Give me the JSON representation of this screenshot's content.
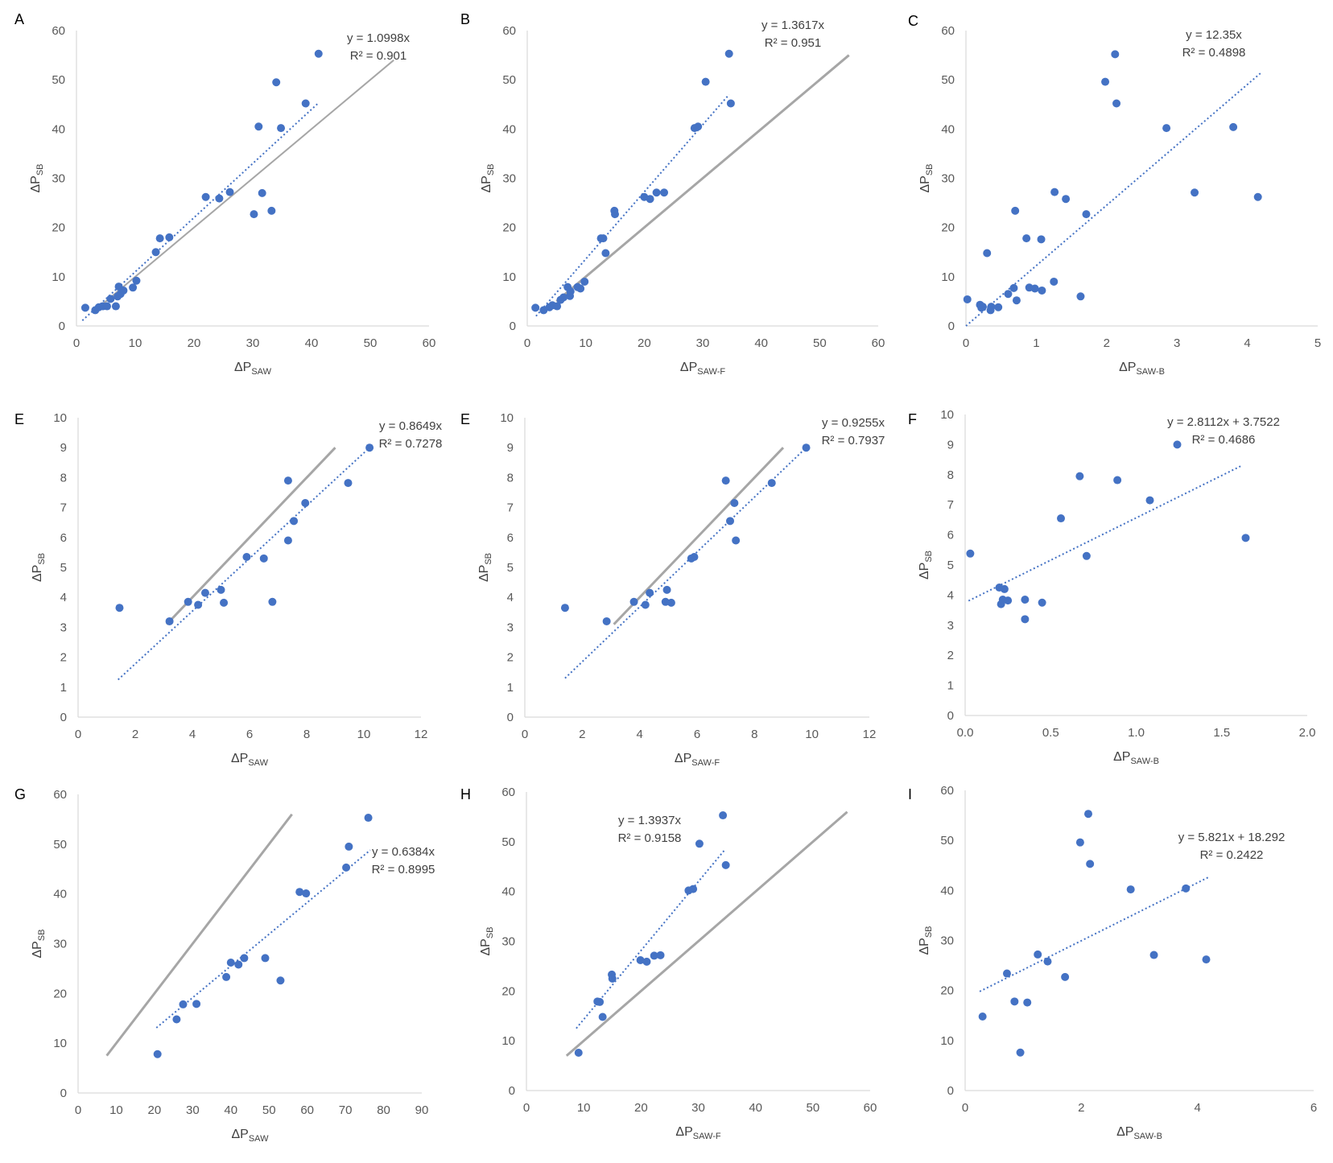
{
  "chart_data": [
    {
      "panel": "A",
      "type": "scatter",
      "xlabel": {
        "base": "ΔP",
        "sub": "SAW"
      },
      "ylabel": {
        "base": "ΔP",
        "sub": "SB"
      },
      "xlim": [
        0,
        60
      ],
      "ylim": [
        0,
        60
      ],
      "xticks": [
        0,
        10,
        20,
        30,
        40,
        50,
        60
      ],
      "yticks": [
        0,
        10,
        20,
        30,
        40,
        50,
        60
      ],
      "xtick_labels": [
        "0",
        "10",
        "20",
        "30",
        "40",
        "50",
        "60"
      ],
      "ytick_labels": [
        "0",
        "10",
        "20",
        "30",
        "40",
        "50",
        "60"
      ],
      "points": [
        [
          1.5,
          3.7
        ],
        [
          3.2,
          3.2
        ],
        [
          3.8,
          3.8
        ],
        [
          4.5,
          4
        ],
        [
          5.2,
          4
        ],
        [
          5.8,
          5.5
        ],
        [
          6.7,
          4
        ],
        [
          7,
          6
        ],
        [
          7.2,
          8
        ],
        [
          7.5,
          6.5
        ],
        [
          8,
          7.2
        ],
        [
          9.6,
          7.8
        ],
        [
          10.2,
          9.2
        ],
        [
          13.5,
          15
        ],
        [
          14.2,
          17.8
        ],
        [
          15.8,
          18
        ],
        [
          22,
          26.2
        ],
        [
          24.3,
          25.9
        ],
        [
          26.1,
          27.2
        ],
        [
          30.2,
          22.7
        ],
        [
          31,
          40.5
        ],
        [
          31.6,
          27
        ],
        [
          33.2,
          23.4
        ],
        [
          34,
          49.5
        ],
        [
          34.8,
          40.2
        ],
        [
          39,
          45.2
        ],
        [
          41.2,
          55.3
        ]
      ],
      "trendline": {
        "x": [
          1,
          41
        ],
        "y": [
          1.1,
          45.1
        ]
      },
      "identity": {
        "x": [
          4,
          54
        ],
        "y": [
          4,
          54
        ]
      },
      "equation": "y = 1.0998x",
      "r2": "R² = 0.901"
    },
    {
      "panel": "B",
      "type": "scatter",
      "xlabel": {
        "base": "ΔP",
        "sub": "SAW-F"
      },
      "ylabel": {
        "base": "ΔP",
        "sub": "SB"
      },
      "xlim": [
        0,
        60
      ],
      "ylim": [
        0,
        60
      ],
      "xticks": [
        0,
        10,
        20,
        30,
        40,
        50,
        60
      ],
      "yticks": [
        0,
        10,
        20,
        30,
        40,
        50,
        60
      ],
      "xtick_labels": [
        "0",
        "10",
        "20",
        "30",
        "40",
        "50",
        "60"
      ],
      "ytick_labels": [
        "0",
        "10",
        "20",
        "30",
        "40",
        "50",
        "60"
      ],
      "points": [
        [
          1.4,
          3.7
        ],
        [
          2.8,
          3.2
        ],
        [
          3.8,
          3.8
        ],
        [
          4.3,
          4.2
        ],
        [
          5.1,
          4
        ],
        [
          5.7,
          5.3
        ],
        [
          6.2,
          5.8
        ],
        [
          6.9,
          7.9
        ],
        [
          7.3,
          6.1
        ],
        [
          7.4,
          7
        ],
        [
          8.6,
          7.9
        ],
        [
          9.1,
          7.6
        ],
        [
          9.8,
          9
        ],
        [
          12.6,
          17.8
        ],
        [
          13,
          17.8
        ],
        [
          13.4,
          14.8
        ],
        [
          14.9,
          23.4
        ],
        [
          15,
          22.7
        ],
        [
          20,
          26.2
        ],
        [
          21,
          25.8
        ],
        [
          22.1,
          27.1
        ],
        [
          23.4,
          27.1
        ],
        [
          28.6,
          40.2
        ],
        [
          29.2,
          40.5
        ],
        [
          30.5,
          49.6
        ],
        [
          34.5,
          55.3
        ],
        [
          34.8,
          45.2
        ]
      ],
      "trendline": {
        "x": [
          1.5,
          34.5
        ],
        "y": [
          2,
          47
        ]
      },
      "identity": {
        "x": [
          5,
          55
        ],
        "y": [
          5,
          55
        ]
      },
      "equation": "y = 1.3617x",
      "r2": "R² = 0.951"
    },
    {
      "panel": "C",
      "type": "scatter",
      "xlabel": {
        "base": "ΔP",
        "sub": "SAW-B"
      },
      "ylabel": {
        "base": "ΔP",
        "sub": "SB"
      },
      "xlim": [
        0,
        5
      ],
      "ylim": [
        0,
        60
      ],
      "xticks": [
        0,
        1,
        2,
        3,
        4,
        5
      ],
      "yticks": [
        0,
        10,
        20,
        30,
        40,
        50,
        60
      ],
      "xtick_labels": [
        "0",
        "1",
        "2",
        "3",
        "4",
        "5"
      ],
      "ytick_labels": [
        "0",
        "10",
        "20",
        "30",
        "40",
        "50",
        "60"
      ],
      "points": [
        [
          0.02,
          5.4
        ],
        [
          0.2,
          4.3
        ],
        [
          0.22,
          3.7
        ],
        [
          0.24,
          3.9
        ],
        [
          0.3,
          14.8
        ],
        [
          0.35,
          3.2
        ],
        [
          0.36,
          3.9
        ],
        [
          0.46,
          3.8
        ],
        [
          0.6,
          6.5
        ],
        [
          0.68,
          7.7
        ],
        [
          0.7,
          23.4
        ],
        [
          0.72,
          5.2
        ],
        [
          0.86,
          17.8
        ],
        [
          0.9,
          7.8
        ],
        [
          0.98,
          7.6
        ],
        [
          1.07,
          17.6
        ],
        [
          1.08,
          7.2
        ],
        [
          1.25,
          9
        ],
        [
          1.26,
          27.2
        ],
        [
          1.42,
          25.8
        ],
        [
          1.63,
          6
        ],
        [
          1.71,
          22.7
        ],
        [
          1.98,
          49.6
        ],
        [
          2.12,
          55.2
        ],
        [
          2.14,
          45.2
        ],
        [
          2.85,
          40.2
        ],
        [
          3.25,
          27.1
        ],
        [
          3.8,
          40.4
        ],
        [
          4.15,
          26.2
        ]
      ],
      "trendline": {
        "x": [
          0,
          4.2
        ],
        "y": [
          0,
          51.5
        ]
      },
      "equation": "y = 12.35x",
      "r2": "R² = 0.4898"
    },
    {
      "panel": "E",
      "type": "scatter",
      "xlabel": {
        "base": "ΔP",
        "sub": "SAW"
      },
      "ylabel": {
        "base": "ΔP",
        "sub": "SB"
      },
      "xlim": [
        0,
        12
      ],
      "ylim": [
        0,
        10
      ],
      "xticks": [
        0,
        2,
        4,
        6,
        8,
        10,
        12
      ],
      "yticks": [
        0,
        1,
        2,
        3,
        4,
        5,
        6,
        7,
        8,
        9,
        10
      ],
      "xtick_labels": [
        "0",
        "2",
        "4",
        "6",
        "8",
        "10",
        "12"
      ],
      "ytick_labels": [
        "0",
        "1",
        "2",
        "3",
        "4",
        "5",
        "6",
        "7",
        "8",
        "9",
        "10"
      ],
      "points": [
        [
          1.45,
          3.65
        ],
        [
          3.2,
          3.2
        ],
        [
          3.85,
          3.85
        ],
        [
          4.2,
          3.75
        ],
        [
          4.45,
          4.15
        ],
        [
          5,
          4.25
        ],
        [
          5.1,
          3.82
        ],
        [
          5.9,
          5.35
        ],
        [
          6.5,
          5.3
        ],
        [
          6.8,
          3.85
        ],
        [
          7.35,
          5.9
        ],
        [
          7.35,
          7.9
        ],
        [
          7.55,
          6.55
        ],
        [
          7.95,
          7.15
        ],
        [
          9.45,
          7.82
        ],
        [
          10.2,
          9
        ]
      ],
      "trendline": {
        "x": [
          1.4,
          10.2
        ],
        "y": [
          1.25,
          9
        ]
      },
      "identity": {
        "x": [
          3.1,
          9
        ],
        "y": [
          3.1,
          9
        ]
      },
      "equation": "y = 0.8649x",
      "r2": "R² = 0.7278"
    },
    {
      "panel": "E",
      "type": "scatter",
      "xlabel": {
        "base": "ΔP",
        "sub": "SAW-F"
      },
      "ylabel": {
        "base": "ΔP",
        "sub": "SB"
      },
      "xlim": [
        0,
        12
      ],
      "ylim": [
        0,
        10
      ],
      "xticks": [
        0,
        2,
        4,
        6,
        8,
        10,
        12
      ],
      "yticks": [
        0,
        1,
        2,
        3,
        4,
        5,
        6,
        7,
        8,
        9,
        10
      ],
      "xtick_labels": [
        "0",
        "2",
        "4",
        "6",
        "8",
        "10",
        "12"
      ],
      "ytick_labels": [
        "0",
        "1",
        "2",
        "3",
        "4",
        "5",
        "6",
        "7",
        "8",
        "9",
        "10"
      ],
      "points": [
        [
          1.4,
          3.65
        ],
        [
          2.85,
          3.2
        ],
        [
          3.8,
          3.85
        ],
        [
          4.2,
          3.75
        ],
        [
          4.35,
          4.15
        ],
        [
          4.9,
          3.85
        ],
        [
          4.95,
          4.25
        ],
        [
          5.1,
          3.82
        ],
        [
          5.8,
          5.3
        ],
        [
          5.9,
          5.35
        ],
        [
          7,
          7.9
        ],
        [
          7.15,
          6.55
        ],
        [
          7.3,
          7.15
        ],
        [
          7.35,
          5.9
        ],
        [
          8.6,
          7.82
        ],
        [
          9.8,
          9
        ]
      ],
      "trendline": {
        "x": [
          1.4,
          9.8
        ],
        "y": [
          1.3,
          9
        ]
      },
      "identity": {
        "x": [
          3.1,
          9
        ],
        "y": [
          3.1,
          9
        ]
      },
      "equation": "y = 0.9255x",
      "r2": "R² = 0.7937"
    },
    {
      "panel": "F",
      "type": "scatter",
      "xlabel": {
        "base": "ΔP",
        "sub": "SAW-B"
      },
      "ylabel": {
        "base": "ΔP",
        "sub": "SB"
      },
      "xlim": [
        0,
        2
      ],
      "ylim": [
        0,
        10
      ],
      "xticks": [
        0,
        0.5,
        1,
        1.5,
        2
      ],
      "yticks": [
        0,
        1,
        2,
        3,
        4,
        5,
        6,
        7,
        8,
        9,
        10
      ],
      "xtick_labels": [
        "0.0",
        "0.5",
        "1.0",
        "1.5",
        "2.0"
      ],
      "ytick_labels": [
        "0",
        "1",
        "2",
        "3",
        "4",
        "5",
        "6",
        "7",
        "8",
        "9",
        "10"
      ],
      "points": [
        [
          0.03,
          5.38
        ],
        [
          0.2,
          4.25
        ],
        [
          0.21,
          3.7
        ],
        [
          0.22,
          3.85
        ],
        [
          0.23,
          4.2
        ],
        [
          0.25,
          3.82
        ],
        [
          0.35,
          3.85
        ],
        [
          0.35,
          3.2
        ],
        [
          0.45,
          3.75
        ],
        [
          0.56,
          6.55
        ],
        [
          0.67,
          7.95
        ],
        [
          0.71,
          5.3
        ],
        [
          0.89,
          7.82
        ],
        [
          1.08,
          7.15
        ],
        [
          1.24,
          9
        ],
        [
          1.64,
          5.9
        ]
      ],
      "trendline": {
        "x": [
          0.02,
          1.62
        ],
        "y": [
          3.81,
          8.31
        ]
      },
      "equation": "y = 2.8112x + 3.7522",
      "r2": "R² = 0.4686"
    },
    {
      "panel": "G",
      "type": "scatter",
      "xlabel": {
        "base": "ΔP",
        "sub": "SAW"
      },
      "ylabel": {
        "base": "ΔP",
        "sub": "SB"
      },
      "xlim": [
        0,
        90
      ],
      "ylim": [
        0,
        60
      ],
      "xticks": [
        0,
        10,
        20,
        30,
        40,
        50,
        60,
        70,
        80,
        90
      ],
      "yticks": [
        0,
        10,
        20,
        30,
        40,
        50,
        60
      ],
      "xtick_labels": [
        "0",
        "10",
        "20",
        "30",
        "40",
        "50",
        "60",
        "70",
        "80",
        "90"
      ],
      "ytick_labels": [
        "0",
        "10",
        "20",
        "30",
        "40",
        "50",
        "60"
      ],
      "points": [
        [
          20.8,
          7.8
        ],
        [
          25.8,
          14.8
        ],
        [
          27.5,
          17.8
        ],
        [
          31,
          17.9
        ],
        [
          38.8,
          23.3
        ],
        [
          40,
          26.2
        ],
        [
          42,
          25.8
        ],
        [
          43.5,
          27.1
        ],
        [
          49,
          27.1
        ],
        [
          53,
          22.6
        ],
        [
          58,
          40.4
        ],
        [
          59.7,
          40.1
        ],
        [
          70.2,
          45.3
        ],
        [
          70.9,
          49.5
        ],
        [
          76,
          55.3
        ]
      ],
      "trendline": {
        "x": [
          20.5,
          76.5
        ],
        "y": [
          13.1,
          48.8
        ]
      },
      "identity": {
        "x": [
          7.5,
          56
        ],
        "y": [
          7.5,
          56
        ]
      },
      "equation": "y = 0.6384x",
      "r2": "R² = 0.8995"
    },
    {
      "panel": "H",
      "type": "scatter",
      "xlabel": {
        "base": "ΔP",
        "sub": "SAW-F"
      },
      "ylabel": {
        "base": "ΔP",
        "sub": "SB"
      },
      "xlim": [
        0,
        60
      ],
      "ylim": [
        0,
        60
      ],
      "xticks": [
        0,
        10,
        20,
        30,
        40,
        50,
        60
      ],
      "yticks": [
        0,
        10,
        20,
        30,
        40,
        50,
        60
      ],
      "xtick_labels": [
        "0",
        "10",
        "20",
        "30",
        "40",
        "50",
        "60"
      ],
      "ytick_labels": [
        "0",
        "10",
        "20",
        "30",
        "40",
        "50",
        "60"
      ],
      "points": [
        [
          9.1,
          7.6
        ],
        [
          12.4,
          17.9
        ],
        [
          12.8,
          17.8
        ],
        [
          13.3,
          14.8
        ],
        [
          14.9,
          23.3
        ],
        [
          15,
          22.5
        ],
        [
          19.9,
          26.2
        ],
        [
          21,
          25.9
        ],
        [
          22.3,
          27.1
        ],
        [
          23.4,
          27.2
        ],
        [
          28.3,
          40.2
        ],
        [
          29.1,
          40.5
        ],
        [
          30.2,
          49.6
        ],
        [
          34.3,
          55.3
        ],
        [
          34.8,
          45.3
        ]
      ],
      "trendline": {
        "x": [
          8.7,
          34.5
        ],
        "y": [
          12.5,
          48.2
        ]
      },
      "identity": {
        "x": [
          7,
          56
        ],
        "y": [
          7,
          56
        ]
      },
      "equation": "y = 1.3937x",
      "r2": "R² = 0.9158"
    },
    {
      "panel": "I",
      "type": "scatter",
      "xlabel": {
        "base": "ΔP",
        "sub": "SAW-B"
      },
      "ylabel": {
        "base": "ΔP",
        "sub": "SB"
      },
      "xlim": [
        0,
        6
      ],
      "ylim": [
        0,
        60
      ],
      "xticks": [
        0,
        2,
        4,
        6
      ],
      "yticks": [
        0,
        10,
        20,
        30,
        40,
        50,
        60
      ],
      "xtick_labels": [
        "0",
        "2",
        "4",
        "6"
      ],
      "ytick_labels": [
        "0",
        "10",
        "20",
        "30",
        "40",
        "50",
        "60"
      ],
      "points": [
        [
          0.3,
          14.8
        ],
        [
          0.72,
          23.4
        ],
        [
          0.85,
          17.8
        ],
        [
          0.95,
          7.6
        ],
        [
          1.07,
          17.6
        ],
        [
          1.25,
          27.2
        ],
        [
          1.42,
          25.8
        ],
        [
          1.72,
          22.7
        ],
        [
          1.98,
          49.6
        ],
        [
          2.12,
          55.3
        ],
        [
          2.15,
          45.3
        ],
        [
          2.85,
          40.2
        ],
        [
          3.25,
          27.1
        ],
        [
          3.8,
          40.4
        ],
        [
          4.15,
          26.2
        ]
      ],
      "trendline": {
        "x": [
          0.25,
          4.2
        ],
        "y": [
          19.8,
          42.7
        ]
      },
      "equation": "y = 5.821x + 18.292",
      "r2": "R² = 0.2422"
    }
  ]
}
